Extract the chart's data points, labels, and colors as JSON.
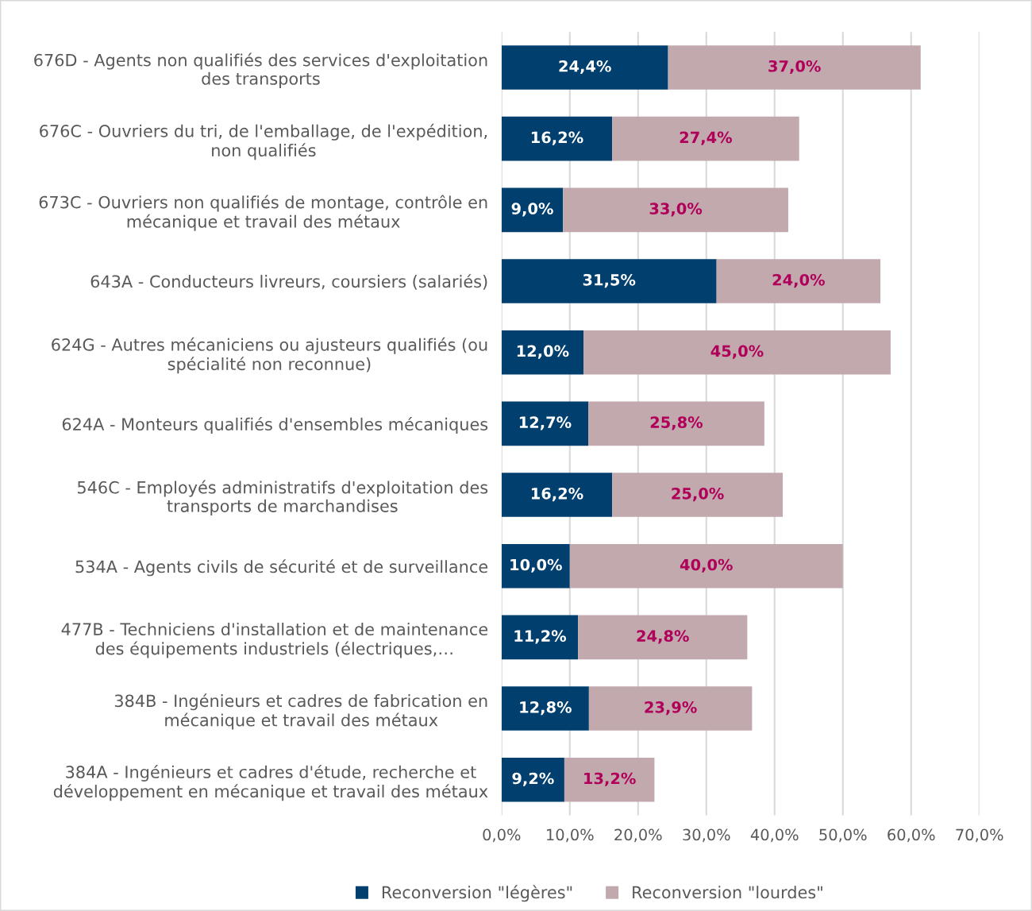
{
  "chart_data": {
    "type": "bar",
    "orientation": "horizontal",
    "stacked": true,
    "categories": [
      "676D - Agents non qualifiés des services d'exploitation\ndes transports",
      "676C - Ouvriers du tri, de l'emballage, de l'expédition,\nnon qualifiés",
      "673C - Ouvriers non qualifiés de montage, contrôle en\nmécanique et travail des métaux",
      "643A - Conducteurs livreurs, coursiers (salariés)",
      "624G - Autres mécaniciens ou ajusteurs qualifiés (ou\nspécialité non reconnue)",
      "624A - Monteurs qualifiés d'ensembles mécaniques",
      "546C - Employés administratifs d'exploitation des\ntransports de marchandises",
      "534A - Agents civils de sécurité et de surveillance",
      "477B - Techniciens d'installation et de maintenance\ndes équipements industriels (électriques,…",
      "384B - Ingénieurs et cadres de fabrication en\nmécanique et travail des métaux",
      "384A - Ingénieurs et cadres d'étude, recherche et\ndéveloppement en mécanique et travail des métaux"
    ],
    "series": [
      {
        "name": "Reconversion \"légères\"",
        "color": "#003f6e",
        "values": [
          24.4,
          16.2,
          9.0,
          31.5,
          12.0,
          12.7,
          16.2,
          10.0,
          11.2,
          12.8,
          9.2
        ],
        "value_labels": [
          "24,4%",
          "16,2%",
          "9,0%",
          "31,5%",
          "12,0%",
          "12,7%",
          "16,2%",
          "10,0%",
          "11,2%",
          "12,8%",
          "9,2%"
        ]
      },
      {
        "name": "Reconversion \"lourdes\"",
        "color": "#c1a9ae",
        "values": [
          37.0,
          27.4,
          33.0,
          24.0,
          45.0,
          25.8,
          25.0,
          40.0,
          24.8,
          23.9,
          13.2
        ],
        "value_labels": [
          "37,0%",
          "27,4%",
          "33,0%",
          "24,0%",
          "45,0%",
          "25,8%",
          "25,0%",
          "40,0%",
          "24,8%",
          "23,9%",
          "13,2%"
        ]
      }
    ],
    "xlim": [
      0,
      70
    ],
    "xticks": [
      {
        "value": 0,
        "label": "0,0%"
      },
      {
        "value": 10,
        "label": "10,0%"
      },
      {
        "value": 20,
        "label": "20,0%"
      },
      {
        "value": 30,
        "label": "30,0%"
      },
      {
        "value": 40,
        "label": "40,0%"
      },
      {
        "value": 50,
        "label": "50,0%"
      },
      {
        "value": 60,
        "label": "60,0%"
      },
      {
        "value": 70,
        "label": "70,0%"
      }
    ],
    "grid": "x",
    "legend": "bottom"
  }
}
